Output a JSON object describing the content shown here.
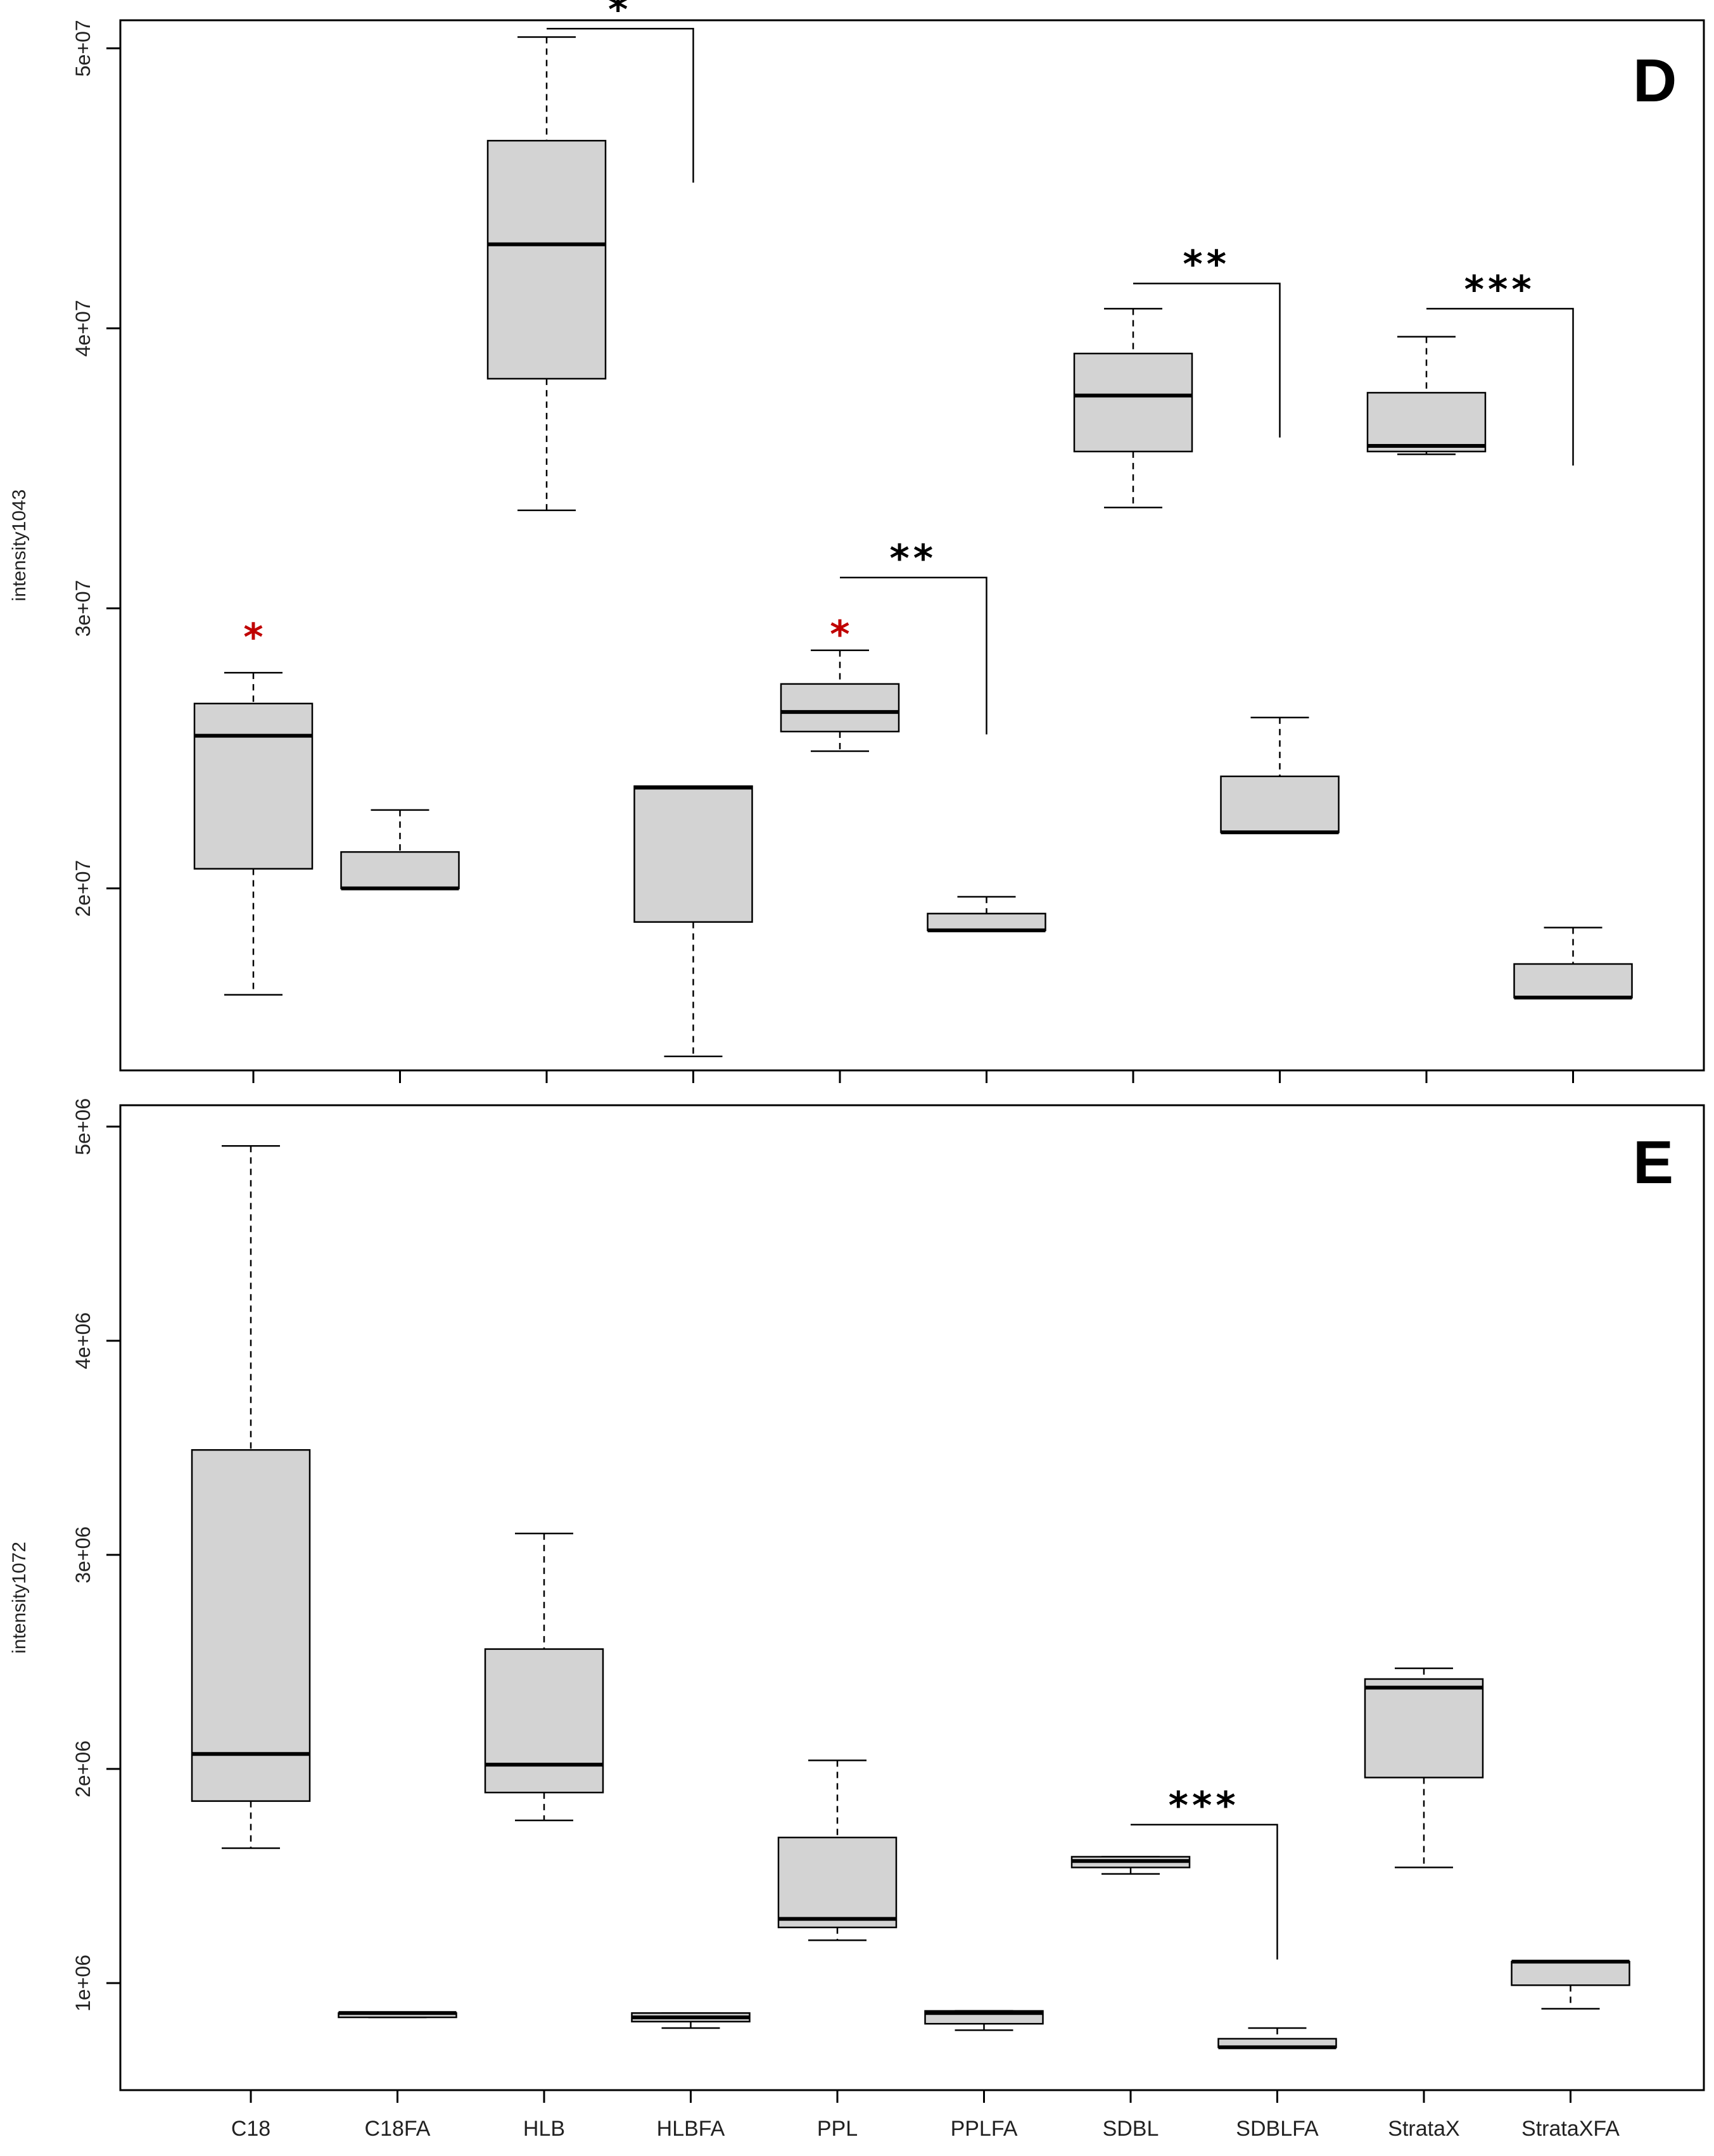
{
  "chart_data": [
    {
      "panel_label": "D",
      "type": "box",
      "ylabel": "intensity1043",
      "ylim": [
        13500000,
        51000000
      ],
      "y_ticks": [
        20000000,
        30000000,
        40000000,
        50000000
      ],
      "y_tick_labels": [
        "2e+07",
        "3e+07",
        "4e+07",
        "5e+07"
      ],
      "categories": [
        "C18",
        "C18FA",
        "HLB",
        "HLBFA",
        "PPL",
        "PPLFA",
        "SDBL",
        "SDBLFA",
        "StrataX",
        "StrataXFA"
      ],
      "show_x_labels": false,
      "boxes": [
        {
          "category": "C18",
          "whisker_low": 16200000,
          "q1": 20700000,
          "median": 25450000,
          "q3": 26600000,
          "whisker_high": 27700000
        },
        {
          "category": "C18FA",
          "whisker_low": 20000000,
          "q1": 20000000,
          "median": 20000000,
          "q3": 21300000,
          "whisker_high": 22800000
        },
        {
          "category": "HLB",
          "whisker_low": 33500000,
          "q1": 38200000,
          "median": 43000000,
          "q3": 46700000,
          "whisker_high": 50400000
        },
        {
          "category": "HLBFA",
          "whisker_low": 14000000,
          "q1": 18800000,
          "median": 23600000,
          "q3": 23650000,
          "whisker_high": 23650000
        },
        {
          "category": "PPL",
          "whisker_low": 24900000,
          "q1": 25600000,
          "median": 26300000,
          "q3": 27300000,
          "whisker_high": 28500000
        },
        {
          "category": "PPLFA",
          "whisker_low": 18500000,
          "q1": 18500000,
          "median": 18500000,
          "q3": 19100000,
          "whisker_high": 19700000
        },
        {
          "category": "SDBL",
          "whisker_low": 33600000,
          "q1": 35600000,
          "median": 37600000,
          "q3": 39100000,
          "whisker_high": 40700000
        },
        {
          "category": "SDBLFA",
          "whisker_low": 22000000,
          "q1": 22000000,
          "median": 22000000,
          "q3": 24000000,
          "whisker_high": 26100000
        },
        {
          "category": "StrataX",
          "whisker_low": 35500000,
          "q1": 35600000,
          "median": 35800000,
          "q3": 37700000,
          "whisker_high": 39700000
        },
        {
          "category": "StrataXFA",
          "whisker_low": 16100000,
          "q1": 16100000,
          "median": 16100000,
          "q3": 17300000,
          "whisker_high": 18600000
        }
      ],
      "significance_brackets": [
        {
          "from": "HLB",
          "to": "HLBFA",
          "level": 50700000,
          "drop_to": 45200000,
          "label": "*",
          "color": "#000000"
        },
        {
          "from": "PPL",
          "to": "PPLFA",
          "level": 31100000,
          "drop_to": 25500000,
          "label": "**",
          "color": "#000000"
        },
        {
          "from": "SDBL",
          "to": "SDBLFA",
          "level": 41600000,
          "drop_to": 36100000,
          "label": "**",
          "color": "#000000"
        },
        {
          "from": "StrataX",
          "to": "StrataXFA",
          "level": 40700000,
          "drop_to": 35100000,
          "label": "***",
          "color": "#000000"
        }
      ],
      "outlier_markers": [
        {
          "category": "C18",
          "value": 29100000,
          "label": "*",
          "color": "#c00000"
        },
        {
          "category": "PPL",
          "value": 29200000,
          "label": "*",
          "color": "#c00000"
        }
      ]
    },
    {
      "panel_label": "E",
      "type": "box",
      "ylabel": "intensity1072",
      "ylim": [
        500000,
        5100000
      ],
      "y_ticks": [
        1000000,
        2000000,
        3000000,
        4000000,
        5000000
      ],
      "y_tick_labels": [
        "1e+06",
        "2e+06",
        "3e+06",
        "4e+06",
        "5e+06"
      ],
      "categories": [
        "C18",
        "C18FA",
        "HLB",
        "HLBFA",
        "PPL",
        "PPLFA",
        "SDBL",
        "SDBLFA",
        "StrataX",
        "StrataXFA"
      ],
      "show_x_labels": true,
      "boxes": [
        {
          "category": "C18",
          "whisker_low": 1630000,
          "q1": 1850000,
          "median": 2070000,
          "q3": 3490000,
          "whisker_high": 4910000
        },
        {
          "category": "C18FA",
          "whisker_low": 840000,
          "q1": 840000,
          "median": 860000,
          "q3": 860000,
          "whisker_high": 860000
        },
        {
          "category": "HLB",
          "whisker_low": 1760000,
          "q1": 1890000,
          "median": 2020000,
          "q3": 2560000,
          "whisker_high": 3100000
        },
        {
          "category": "HLBFA",
          "whisker_low": 790000,
          "q1": 820000,
          "median": 840000,
          "q3": 860000,
          "whisker_high": 860000
        },
        {
          "category": "PPL",
          "whisker_low": 1200000,
          "q1": 1260000,
          "median": 1300000,
          "q3": 1680000,
          "whisker_high": 2040000
        },
        {
          "category": "PPLFA",
          "whisker_low": 780000,
          "q1": 810000,
          "median": 860000,
          "q3": 870000,
          "whisker_high": 870000
        },
        {
          "category": "SDBL",
          "whisker_low": 1510000,
          "q1": 1540000,
          "median": 1570000,
          "q3": 1590000,
          "whisker_high": 1590000
        },
        {
          "category": "SDBLFA",
          "whisker_low": 700000,
          "q1": 700000,
          "median": 700000,
          "q3": 740000,
          "whisker_high": 790000
        },
        {
          "category": "StrataX",
          "whisker_low": 1540000,
          "q1": 1960000,
          "median": 2380000,
          "q3": 2420000,
          "whisker_high": 2470000
        },
        {
          "category": "StrataXFA",
          "whisker_low": 880000,
          "q1": 990000,
          "median": 1100000,
          "q3": 1100000,
          "whisker_high": 1100000
        }
      ],
      "significance_brackets": [
        {
          "from": "SDBL",
          "to": "SDBLFA",
          "level": 1740000,
          "drop_to": 1110000,
          "label": "***",
          "color": "#000000"
        }
      ],
      "outlier_markers": []
    }
  ],
  "colors": {
    "box_fill": "#d3d3d3",
    "stroke": "#000000",
    "marker_red": "#c00000"
  }
}
